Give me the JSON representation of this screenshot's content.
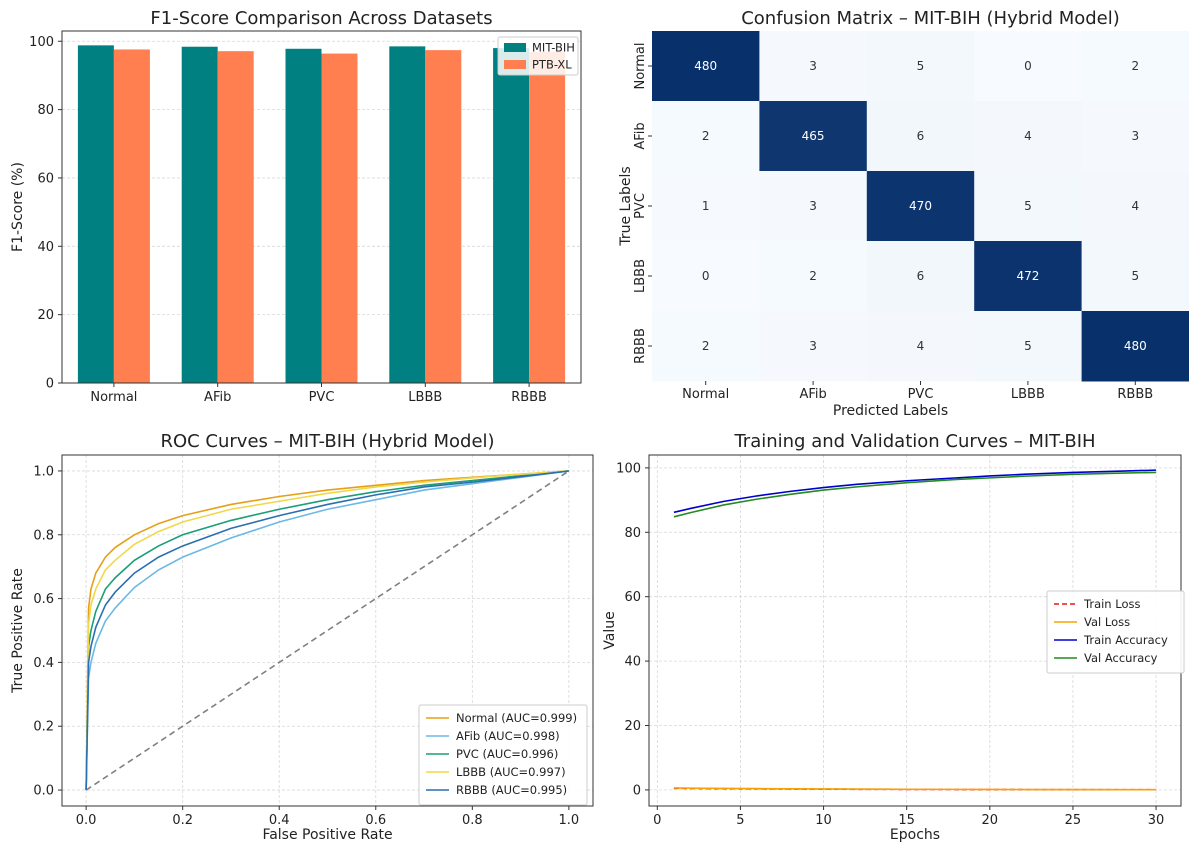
{
  "chart_data": [
    {
      "type": "bar",
      "title": "F1-Score Comparison Across Datasets",
      "xlabel": "",
      "ylabel": "F1-Score (%)",
      "ylim": [
        0,
        103
      ],
      "yticks": [
        0,
        20,
        40,
        60,
        80,
        100
      ],
      "categories": [
        "Normal",
        "AFib",
        "PVC",
        "LBBB",
        "RBBB"
      ],
      "series": [
        {
          "name": "MIT-BIH",
          "color": "#008080",
          "values": [
            98.8,
            98.4,
            97.8,
            98.5,
            98.0
          ]
        },
        {
          "name": "PTB-XL",
          "color": "#ff7f50",
          "values": [
            97.6,
            97.1,
            96.4,
            97.4,
            96.9
          ]
        }
      ],
      "grid": true,
      "legend": "top-right"
    },
    {
      "type": "heatmap",
      "title": "Confusion Matrix – MIT-BIH (Hybrid Model)",
      "xlabel": "Predicted Labels",
      "ylabel": "True Labels",
      "x_categories": [
        "Normal",
        "AFib",
        "PVC",
        "LBBB",
        "RBBB"
      ],
      "y_categories": [
        "Normal",
        "AFib",
        "PVC",
        "LBBB",
        "RBBB"
      ],
      "matrix": [
        [
          480,
          3,
          5,
          0,
          2
        ],
        [
          2,
          465,
          6,
          4,
          3
        ],
        [
          1,
          3,
          470,
          5,
          4
        ],
        [
          0,
          2,
          6,
          472,
          5
        ],
        [
          2,
          3,
          4,
          5,
          480
        ]
      ],
      "colormap": {
        "low": "#f7fbff",
        "high": "#08306b"
      }
    },
    {
      "type": "line",
      "title": "ROC Curves – MIT-BIH (Hybrid Model)",
      "xlabel": "False Positive Rate",
      "ylabel": "True Positive Rate",
      "xlim": [
        -0.05,
        1.05
      ],
      "ylim": [
        -0.05,
        1.05
      ],
      "xticks": [
        0.0,
        0.2,
        0.4,
        0.6,
        0.8,
        1.0
      ],
      "yticks": [
        0.0,
        0.2,
        0.4,
        0.6,
        0.8,
        1.0
      ],
      "x": [
        0,
        0.005,
        0.01,
        0.02,
        0.04,
        0.06,
        0.1,
        0.15,
        0.2,
        0.3,
        0.4,
        0.5,
        0.6,
        0.7,
        0.8,
        0.9,
        1.0
      ],
      "series": [
        {
          "name": "Normal (AUC=0.999)",
          "color": "#e5a018",
          "values": [
            0,
            0.57,
            0.63,
            0.68,
            0.73,
            0.76,
            0.8,
            0.835,
            0.86,
            0.895,
            0.92,
            0.94,
            0.955,
            0.97,
            0.98,
            0.99,
            1.0
          ]
        },
        {
          "name": "AFib (AUC=0.998)",
          "color": "#6cb8e6",
          "values": [
            0,
            0.35,
            0.4,
            0.46,
            0.53,
            0.57,
            0.635,
            0.69,
            0.73,
            0.79,
            0.84,
            0.88,
            0.91,
            0.94,
            0.96,
            0.98,
            1.0
          ]
        },
        {
          "name": "PVC (AUC=0.996)",
          "color": "#1a9e77",
          "values": [
            0,
            0.45,
            0.5,
            0.56,
            0.63,
            0.665,
            0.72,
            0.765,
            0.8,
            0.845,
            0.88,
            0.91,
            0.935,
            0.955,
            0.97,
            0.985,
            1.0
          ]
        },
        {
          "name": "LBBB (AUC=0.997)",
          "color": "#f0d84a",
          "values": [
            0,
            0.52,
            0.58,
            0.63,
            0.69,
            0.72,
            0.77,
            0.81,
            0.84,
            0.88,
            0.905,
            0.93,
            0.95,
            0.965,
            0.978,
            0.99,
            1.0
          ]
        },
        {
          "name": "RBBB (AUC=0.995)",
          "color": "#2a6fb0",
          "values": [
            0,
            0.4,
            0.45,
            0.51,
            0.58,
            0.62,
            0.68,
            0.73,
            0.765,
            0.82,
            0.86,
            0.895,
            0.925,
            0.95,
            0.965,
            0.982,
            1.0
          ]
        }
      ],
      "diagonal": {
        "color": "#808080",
        "dashed": true
      },
      "grid": true,
      "legend": "bottom-right"
    },
    {
      "type": "line",
      "title": "Training and Validation Curves – MIT-BIH",
      "xlabel": "Epochs",
      "ylabel": "Value",
      "xlim": [
        -0.5,
        31.5
      ],
      "ylim": [
        -5,
        104
      ],
      "xticks": [
        0,
        5,
        10,
        15,
        20,
        25,
        30
      ],
      "yticks": [
        0,
        20,
        40,
        60,
        80,
        100
      ],
      "x": [
        1,
        2,
        4,
        6,
        8,
        10,
        12,
        15,
        18,
        20,
        22,
        25,
        28,
        30
      ],
      "series": [
        {
          "name": "Train Loss",
          "color": "#e41a1c",
          "dashed": true,
          "values": [
            0.5,
            0.45,
            0.38,
            0.32,
            0.27,
            0.23,
            0.19,
            0.15,
            0.12,
            0.1,
            0.09,
            0.07,
            0.06,
            0.05
          ]
        },
        {
          "name": "Val Loss",
          "color": "#f5a300",
          "dashed": false,
          "values": [
            0.6,
            0.55,
            0.47,
            0.4,
            0.34,
            0.29,
            0.25,
            0.2,
            0.16,
            0.14,
            0.12,
            0.1,
            0.08,
            0.07
          ]
        },
        {
          "name": "Train Accuracy",
          "color": "#0000cc",
          "dashed": false,
          "values": [
            86.2,
            87.4,
            89.6,
            91.3,
            92.7,
            93.9,
            94.9,
            96.0,
            96.9,
            97.5,
            98.0,
            98.6,
            99.0,
            99.3
          ]
        },
        {
          "name": "Val Accuracy",
          "color": "#228b22",
          "dashed": false,
          "values": [
            84.8,
            86.1,
            88.5,
            90.3,
            91.8,
            93.1,
            94.1,
            95.4,
            96.4,
            96.9,
            97.4,
            98.0,
            98.4,
            98.6
          ]
        }
      ],
      "grid": true,
      "legend": "center-right"
    }
  ]
}
